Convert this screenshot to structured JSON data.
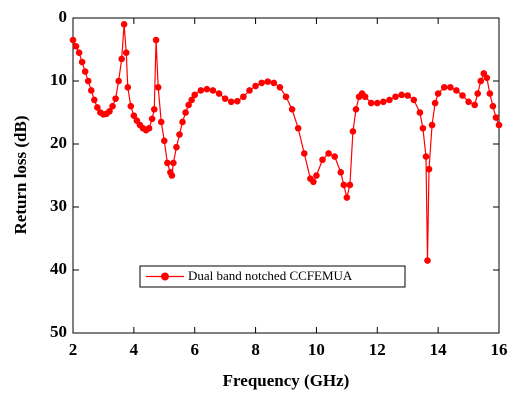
{
  "chart_data": {
    "type": "line",
    "x_label": "Frequency (GHz)",
    "y_label": "Return loss  (dB)",
    "x": [
      2.0,
      2.1,
      2.2,
      2.3,
      2.4,
      2.5,
      2.6,
      2.7,
      2.8,
      2.9,
      3.0,
      3.1,
      3.2,
      3.3,
      3.4,
      3.5,
      3.6,
      3.68,
      3.75,
      3.8,
      3.9,
      4.0,
      4.1,
      4.2,
      4.3,
      4.4,
      4.5,
      4.6,
      4.67,
      4.73,
      4.8,
      4.9,
      5.0,
      5.1,
      5.2,
      5.25,
      5.3,
      5.4,
      5.5,
      5.6,
      5.7,
      5.8,
      5.9,
      6.0,
      6.2,
      6.4,
      6.6,
      6.8,
      7.0,
      7.2,
      7.4,
      7.6,
      7.8,
      8.0,
      8.2,
      8.4,
      8.6,
      8.8,
      9.0,
      9.2,
      9.4,
      9.6,
      9.8,
      9.9,
      10.0,
      10.2,
      10.4,
      10.6,
      10.8,
      10.9,
      11.0,
      11.1,
      11.2,
      11.3,
      11.4,
      11.5,
      11.6,
      11.8,
      12.0,
      12.2,
      12.4,
      12.6,
      12.8,
      13.0,
      13.2,
      13.4,
      13.5,
      13.6,
      13.65,
      13.7,
      13.8,
      13.9,
      14.0,
      14.2,
      14.4,
      14.6,
      14.8,
      15.0,
      15.2,
      15.3,
      15.4,
      15.5,
      15.6,
      15.7,
      15.8,
      15.9,
      16.0
    ],
    "series": [
      {
        "name": "Dual band notched CCFEMUA",
        "color": "#ff0000",
        "values": [
          3.5,
          4.5,
          5.5,
          7,
          8.5,
          10,
          11.5,
          13,
          14.2,
          15,
          15.3,
          15.2,
          14.8,
          14,
          12.8,
          10,
          6.5,
          1,
          5.5,
          11,
          14,
          15.5,
          16.3,
          17,
          17.5,
          17.8,
          17.5,
          16,
          14.5,
          3.5,
          11,
          16.5,
          19.5,
          23,
          24.5,
          25,
          23,
          20.5,
          18.5,
          16.5,
          15,
          13.8,
          13,
          12.2,
          11.5,
          11.3,
          11.5,
          12,
          12.8,
          13.3,
          13.2,
          12.5,
          11.5,
          10.8,
          10.3,
          10.1,
          10.3,
          11,
          12.5,
          14.5,
          17.5,
          21.5,
          25.5,
          26,
          25,
          22.5,
          21.5,
          22,
          24.5,
          26.5,
          28.5,
          26.5,
          18,
          14.5,
          12.5,
          12,
          12.5,
          13.5,
          13.5,
          13.3,
          13,
          12.5,
          12.2,
          12.3,
          13,
          15,
          17.5,
          22,
          38.5,
          24,
          17,
          13.5,
          12,
          11,
          11,
          11.5,
          12.3,
          13.3,
          13.8,
          12,
          10,
          8.8,
          9.5,
          12,
          14,
          15.8,
          17
        ]
      }
    ],
    "xlim": [
      2,
      16
    ],
    "xticks": [
      2,
      4,
      6,
      8,
      10,
      12,
      14,
      16
    ],
    "ylim": [
      0,
      50
    ],
    "yticks": [
      0,
      10,
      20,
      30,
      40,
      50
    ],
    "y_inverted": true,
    "grid": false,
    "legend": "lower center"
  }
}
